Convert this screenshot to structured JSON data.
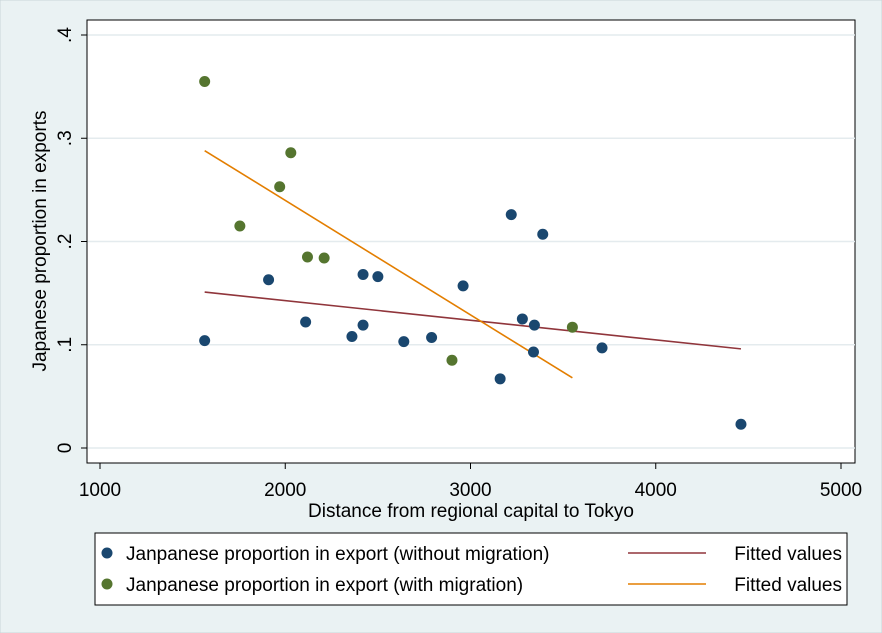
{
  "chart_data": {
    "type": "scatter",
    "title": "",
    "xlabel": "Distance from regional capital to Tokyo",
    "ylabel": "Japanese proportion in exports",
    "xlim": [
      1000,
      5000
    ],
    "ylim": [
      0,
      0.4
    ],
    "xticks": [
      1000,
      2000,
      3000,
      4000,
      5000
    ],
    "xtick_labels": [
      "1000",
      "2000",
      "3000",
      "4000",
      "5000"
    ],
    "yticks": [
      0,
      0.1,
      0.2,
      0.3,
      0.4
    ],
    "ytick_labels": [
      "0",
      ".1",
      ".2",
      ".3",
      ".4"
    ],
    "grid": true,
    "legend_position": "bottom",
    "series": [
      {
        "name": "Janpanese proportion in export (without migration)",
        "kind": "scatter",
        "color": "#1a476f",
        "points": [
          [
            1565,
            0.104
          ],
          [
            1910,
            0.163
          ],
          [
            2110,
            0.122
          ],
          [
            2360,
            0.108
          ],
          [
            2420,
            0.168
          ],
          [
            2420,
            0.119
          ],
          [
            2500,
            0.166
          ],
          [
            2640,
            0.103
          ],
          [
            2790,
            0.107
          ],
          [
            2960,
            0.157
          ],
          [
            3160,
            0.067
          ],
          [
            3220,
            0.226
          ],
          [
            3280,
            0.125
          ],
          [
            3340,
            0.093
          ],
          [
            3345,
            0.119
          ],
          [
            3390,
            0.207
          ],
          [
            3710,
            0.097
          ],
          [
            4460,
            0.023
          ]
        ]
      },
      {
        "name": "Janpanese proportion in export (with migration)",
        "kind": "scatter",
        "color": "#55752f",
        "points": [
          [
            1565,
            0.355
          ],
          [
            1755,
            0.215
          ],
          [
            1970,
            0.253
          ],
          [
            2030,
            0.286
          ],
          [
            2120,
            0.185
          ],
          [
            2210,
            0.184
          ],
          [
            2900,
            0.085
          ],
          [
            3550,
            0.117
          ]
        ]
      },
      {
        "name": "Fitted values",
        "kind": "line",
        "color": "#90353b",
        "points": [
          [
            1565,
            0.151
          ],
          [
            4460,
            0.096
          ]
        ]
      },
      {
        "name": "Fitted values",
        "kind": "line",
        "color": "#e37e00",
        "points": [
          [
            1565,
            0.288
          ],
          [
            3550,
            0.068
          ]
        ]
      }
    ]
  }
}
